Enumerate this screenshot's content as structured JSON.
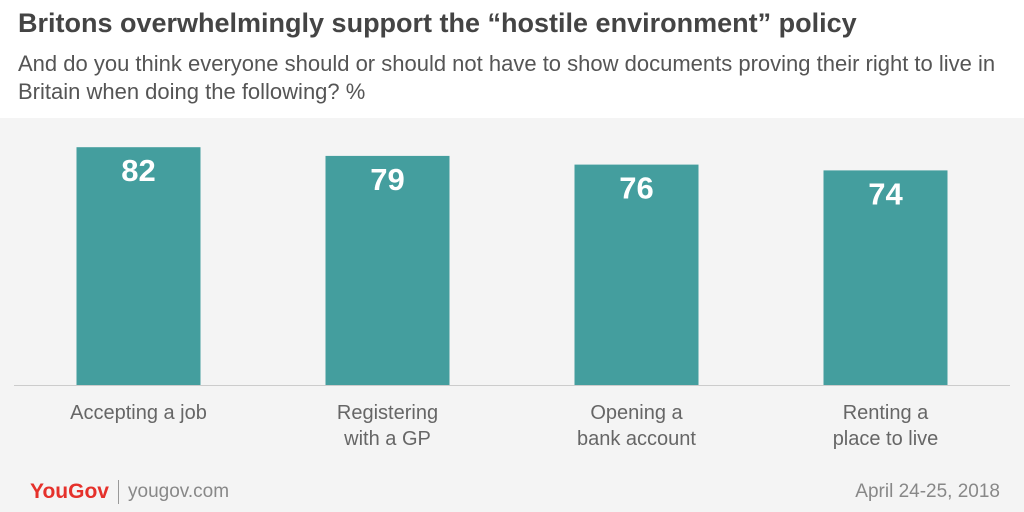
{
  "chart_data": {
    "type": "bar",
    "title": "Britons overwhelmingly support the “hostile environment” policy",
    "subtitle": "And do you think everyone should or should not have to show documents proving their right to live in Britain when doing the following? %",
    "categories": [
      "Accepting a job",
      "Registering\nwith a GP",
      "Opening a\nbank account",
      "Renting a\nplace to live"
    ],
    "values": [
      82,
      79,
      76,
      74
    ],
    "color": "#449e9e",
    "ylim": [
      0,
      100
    ]
  },
  "footer": {
    "brand": "YouGov",
    "site": "yougov.com",
    "date": "April 24-25, 2018"
  }
}
